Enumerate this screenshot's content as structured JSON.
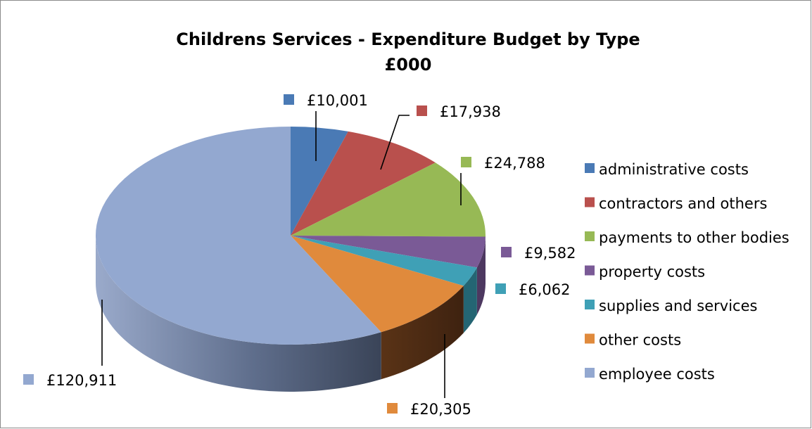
{
  "chart_data": {
    "type": "pie",
    "title_line1": "Childrens Services - Expenditure Budget by Type",
    "title_line2": "£000",
    "three_d": true,
    "legend_position": "right",
    "slices": [
      {
        "name": "administrative costs",
        "value": 10001,
        "label": "£10,001",
        "color": "#4a7ab5",
        "dark": "#2e4e76"
      },
      {
        "name": "contractors and others",
        "value": 17938,
        "label": "£17,938",
        "color": "#b9504d",
        "dark": "#7a3230"
      },
      {
        "name": "payments to other bodies",
        "value": 24788,
        "label": "£24,788",
        "color": "#97b955",
        "dark": "#5f7634"
      },
      {
        "name": "property costs",
        "value": 9582,
        "label": "£9,582",
        "color": "#7a5a96",
        "dark": "#4d3860"
      },
      {
        "name": "supplies and services",
        "value": 6062,
        "label": "£6,062",
        "color": "#3fa0b6",
        "dark": "#246573"
      },
      {
        "name": "other costs",
        "value": 20305,
        "label": "£20,305",
        "color": "#e08a3c",
        "dark": "#5a3316"
      },
      {
        "name": "employee costs",
        "value": 120911,
        "label": "£120,911",
        "color": "#93a8d0",
        "dark": "#5a6b8c"
      }
    ]
  }
}
